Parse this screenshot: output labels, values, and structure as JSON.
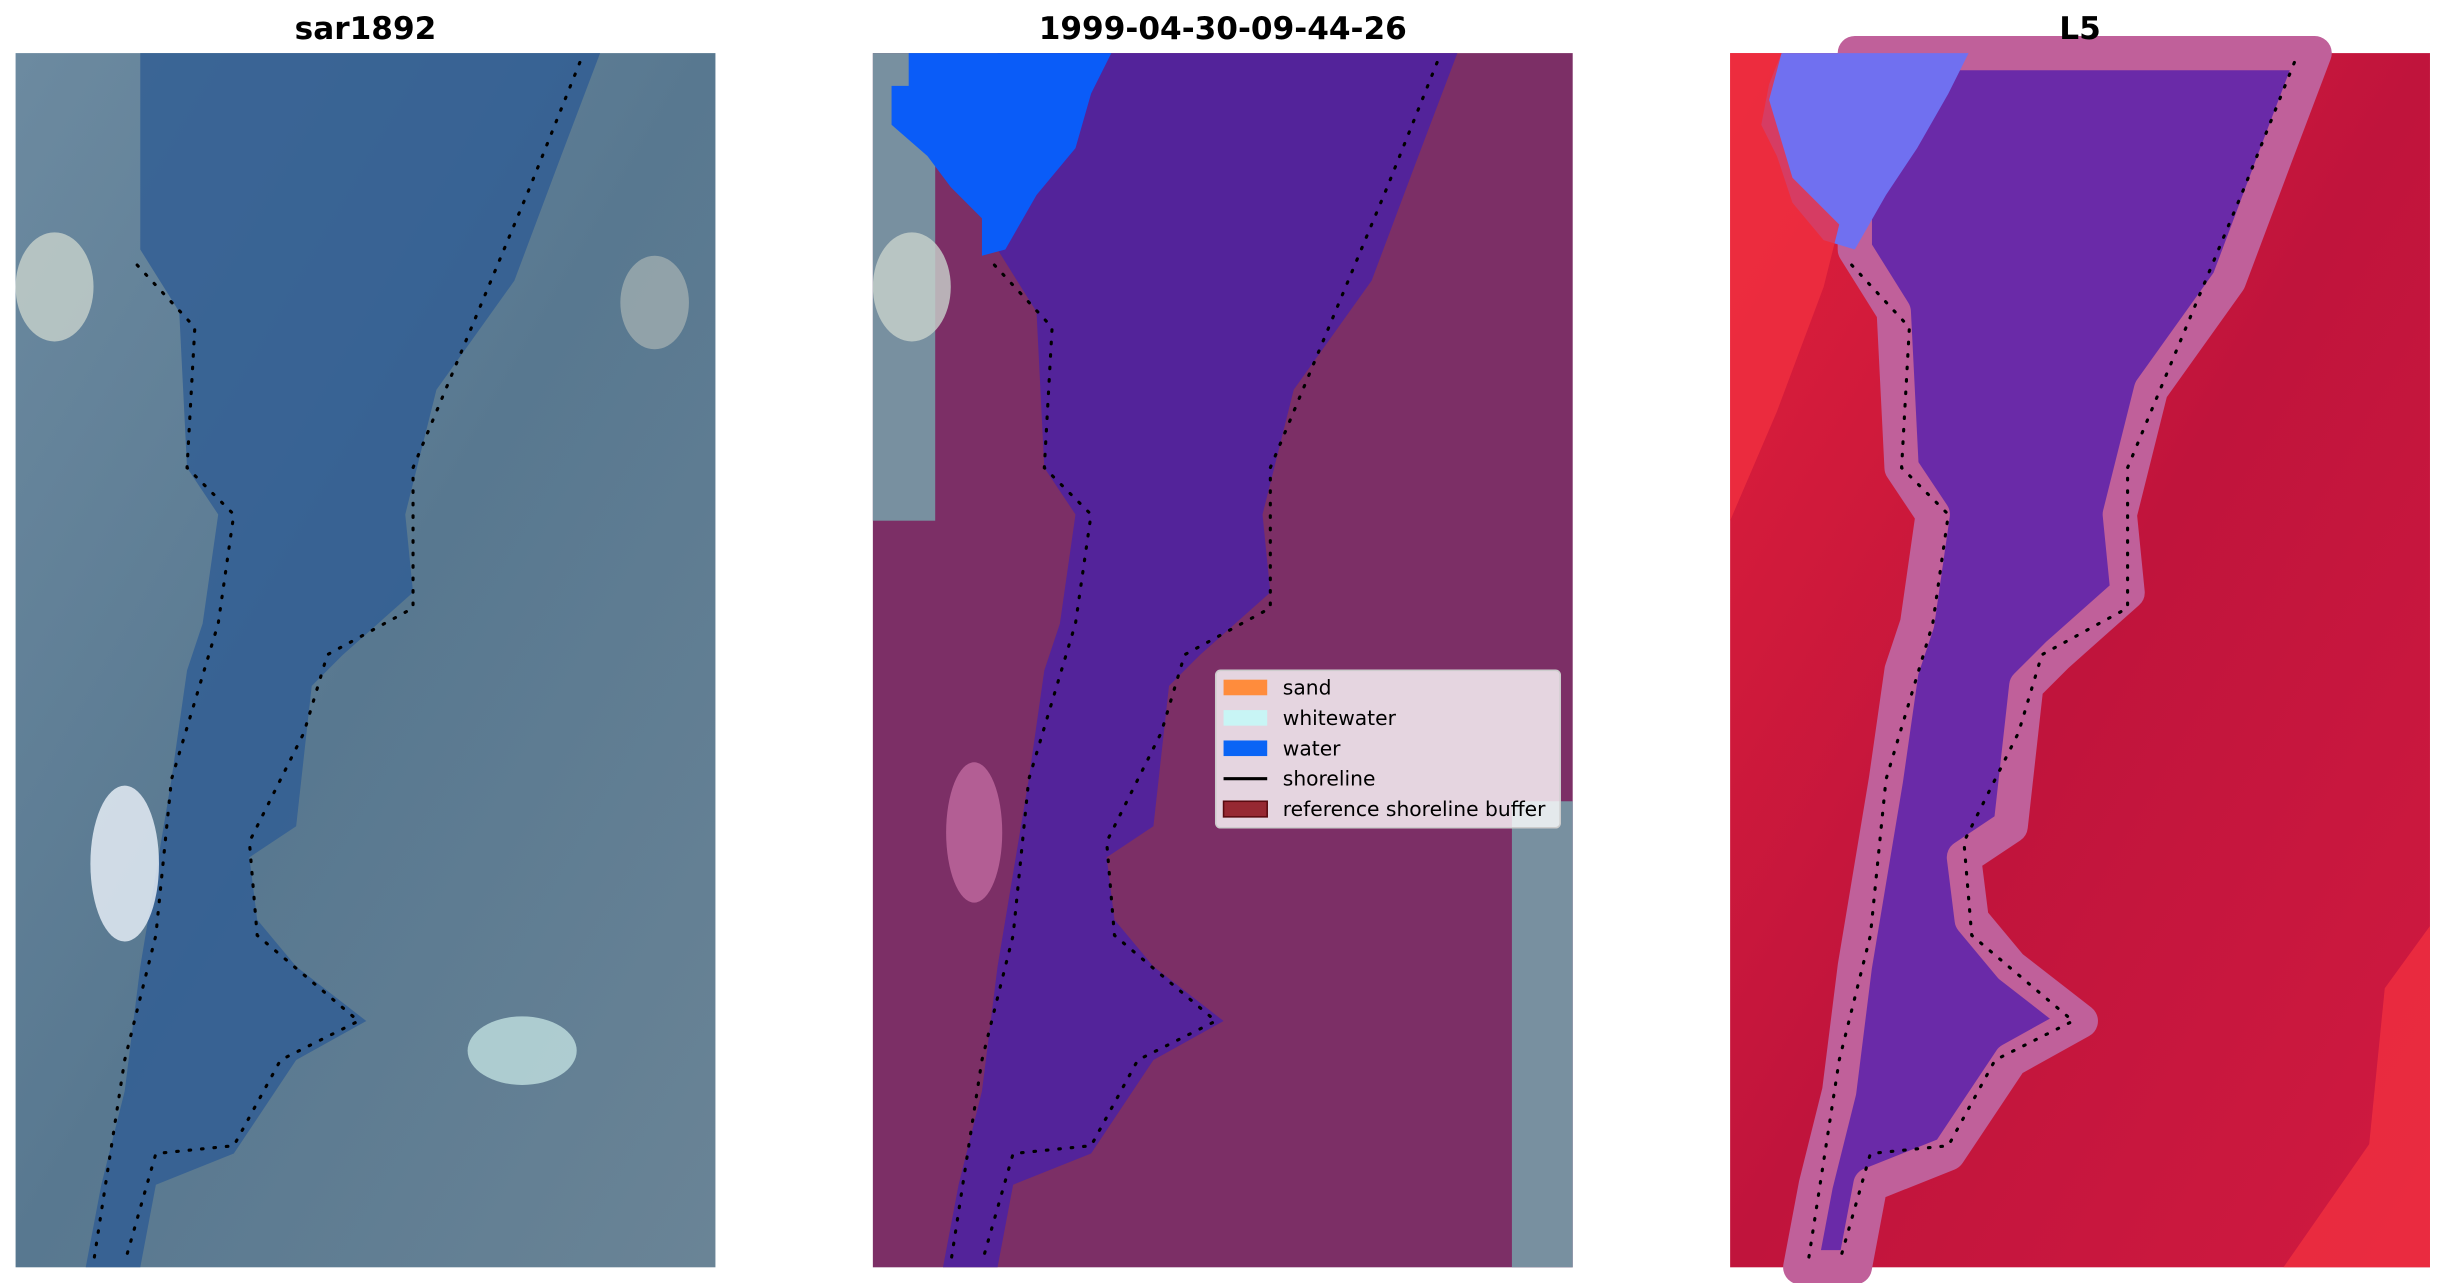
{
  "panels": [
    {
      "title": "sar1892"
    },
    {
      "title": "1999-04-30-09-44-26"
    },
    {
      "title": "L5"
    }
  ],
  "legend": {
    "items": [
      {
        "label": "sand",
        "color": "#ff8c3c",
        "kind": "patch"
      },
      {
        "label": "whitewater",
        "color": "#c8f5f5",
        "kind": "patch"
      },
      {
        "label": "water",
        "color": "#0a64f5",
        "kind": "patch"
      },
      {
        "label": "shoreline",
        "color": "#000000",
        "kind": "line"
      },
      {
        "label": "reference shoreline buffer",
        "color": "#962832",
        "kind": "patch"
      }
    ]
  }
}
